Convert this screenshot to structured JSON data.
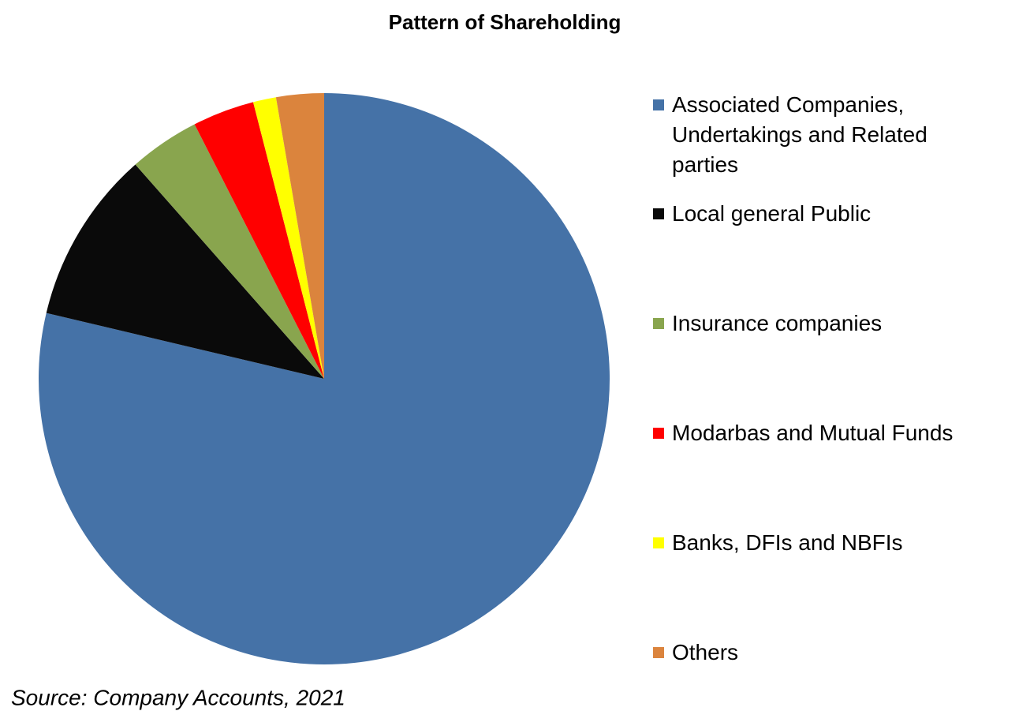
{
  "chart_data": {
    "type": "pie",
    "title": "Pattern of Shareholding",
    "categories": [
      "Associated Companies, Undertakings and Related parties",
      "Local general Public",
      "Insurance companies",
      "Modarbas and Mutual Funds",
      "Banks, DFIs and NBFIs",
      "Others"
    ],
    "values": [
      78.7,
      9.8,
      4.0,
      3.5,
      1.3,
      2.7
    ],
    "colors": [
      "#4572a7",
      "#0a0a0a",
      "#89a54e",
      "#ff0000",
      "#ffff00",
      "#db843d"
    ],
    "source": "Source: Company Accounts, 2021"
  }
}
